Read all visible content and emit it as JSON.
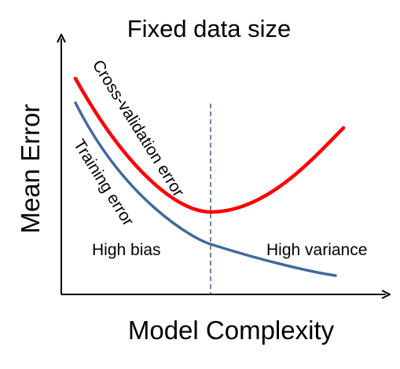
{
  "title": "Fixed data size",
  "x_axis_label": "Model Complexity",
  "y_axis_label": "Mean Error",
  "curves": {
    "cross_validation": {
      "label": "Cross-validation error",
      "color": "#ff0000"
    },
    "training": {
      "label": "Training error",
      "color": "#41699c"
    }
  },
  "regions": {
    "left": "High bias",
    "right": "High variance"
  },
  "optimum_line_color": "#41699c",
  "axis_color": "#000000"
}
